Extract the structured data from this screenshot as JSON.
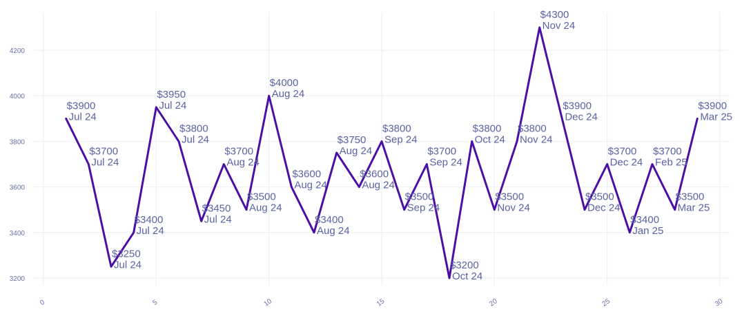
{
  "chart_data": {
    "type": "line",
    "title": "",
    "xlabel": "",
    "ylabel": "",
    "xlim": [
      0,
      30
    ],
    "ylim": [
      3150,
      4300
    ],
    "x_ticks": [
      0,
      5,
      10,
      15,
      20,
      25,
      30
    ],
    "y_ticks": [
      3200,
      3400,
      3600,
      3800,
      4000,
      4200
    ],
    "grid": true,
    "line_color": "#4b0fa8",
    "label_color": "#5c63a3",
    "series": [
      {
        "x": [
          1,
          2,
          3,
          4,
          5,
          6,
          7,
          8,
          9,
          10,
          11,
          12,
          13,
          14,
          15,
          16,
          17,
          18,
          19,
          20,
          21,
          22,
          23,
          24,
          25,
          26,
          27,
          28,
          29
        ],
        "y": [
          3900,
          3700,
          3250,
          3400,
          3950,
          3800,
          3450,
          3700,
          3500,
          4000,
          3600,
          3400,
          3750,
          3600,
          3800,
          3500,
          3700,
          3200,
          3800,
          3500,
          3800,
          4300,
          3900,
          3500,
          3700,
          3400,
          3700,
          3500,
          3900
        ],
        "labels": [
          [
            "$3900",
            "Jul 24"
          ],
          [
            "$3700",
            "Jul 24"
          ],
          [
            "$3250",
            "Jul 24"
          ],
          [
            "$3400",
            "Jul 24"
          ],
          [
            "$3950",
            "Jul 24"
          ],
          [
            "$3800",
            "Jul 24"
          ],
          [
            "$3450",
            "Jul 24"
          ],
          [
            "$3700",
            "Aug 24"
          ],
          [
            "$3500",
            "Aug 24"
          ],
          [
            "$4000",
            "Aug 24"
          ],
          [
            "$3600",
            "Aug 24"
          ],
          [
            "$3400",
            "Aug 24"
          ],
          [
            "$3750",
            "Aug 24"
          ],
          [
            "$3600",
            "Aug 24"
          ],
          [
            "$3800",
            "Sep 24"
          ],
          [
            "$3500",
            "Sep 24"
          ],
          [
            "$3700",
            "Sep 24"
          ],
          [
            "$3200",
            "Oct 24"
          ],
          [
            "$3800",
            "Oct 24"
          ],
          [
            "$3500",
            "Nov 24"
          ],
          [
            "$3800",
            "Nov 24"
          ],
          [
            "$4300",
            "Nov 24"
          ],
          [
            "$3900",
            "Dec 24"
          ],
          [
            "$3500",
            "Dec 24"
          ],
          [
            "$3700",
            "Dec 24"
          ],
          [
            "$3400",
            "Jan 25"
          ],
          [
            "$3700",
            "Feb 25"
          ],
          [
            "$3500",
            "Mar 25"
          ],
          [
            "$3900",
            "Mar 25"
          ]
        ]
      }
    ]
  }
}
